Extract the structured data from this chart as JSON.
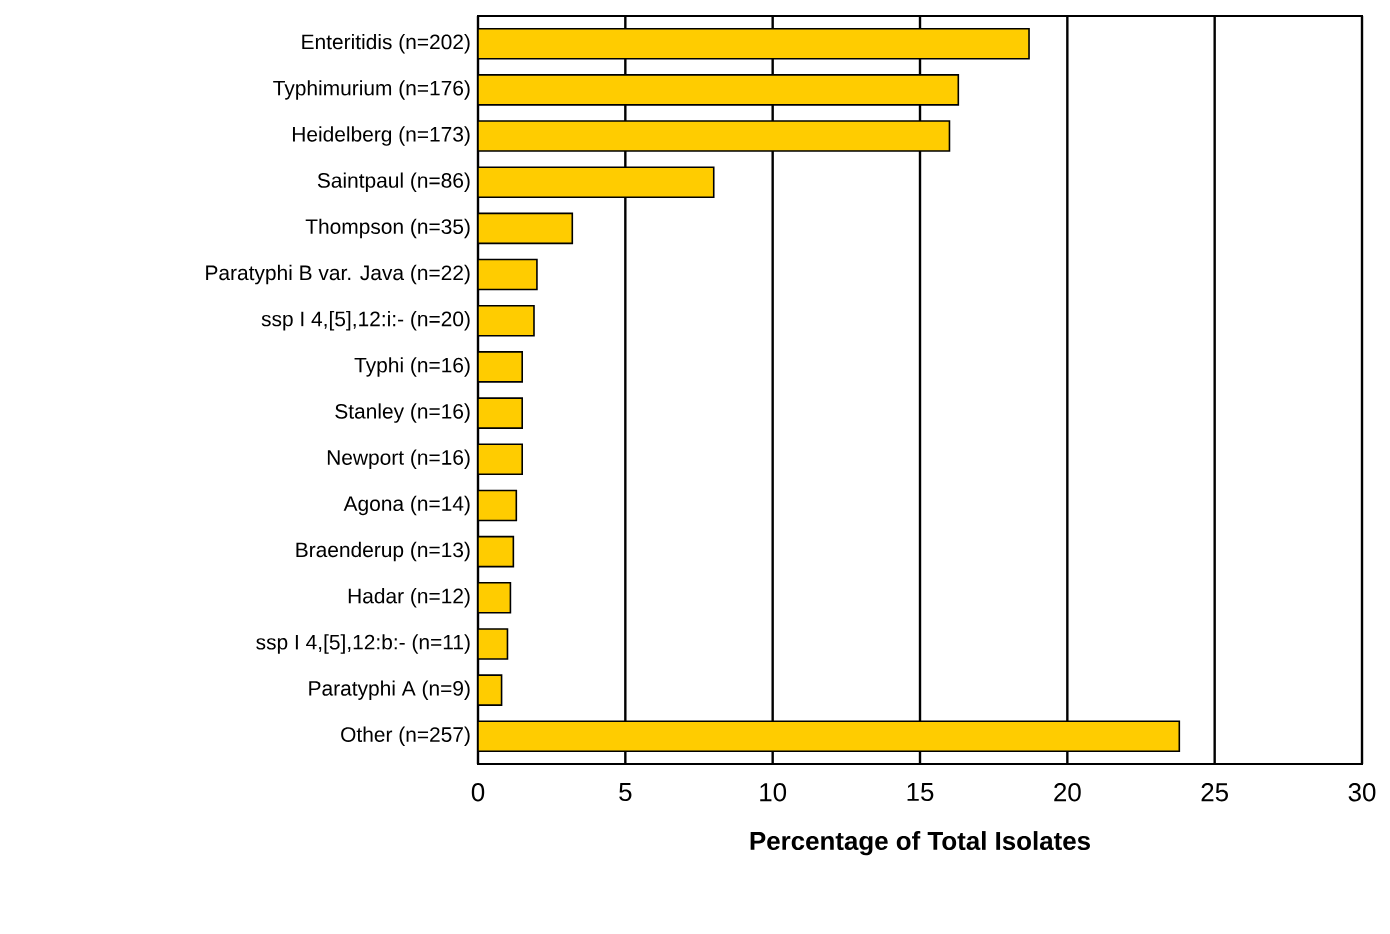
{
  "chart_data": {
    "type": "bar",
    "orientation": "horizontal",
    "xlabel": "Percentage of Total Isolates",
    "categories": [
      "Enteritidis (n=202)",
      "Typhimurium (n=176)",
      "Heidelberg (n=173)",
      "Saintpaul (n=86)",
      "Thompson (n=35)",
      "Paratyphi B var. Java (n=22)",
      "ssp I 4,[5],12:i:- (n=20)",
      "Typhi (n=16)",
      "Stanley (n=16)",
      "Newport (n=16)",
      "Agona (n=14)",
      "Braenderup (n=13)",
      "Hadar (n=12)",
      "ssp I 4,[5],12:b:- (n=11)",
      "Paratyphi A (n=9)",
      "Other (n=257)"
    ],
    "values": [
      18.7,
      16.3,
      16.0,
      8.0,
      3.2,
      2.0,
      1.9,
      1.5,
      1.5,
      1.5,
      1.3,
      1.2,
      1.1,
      1.0,
      0.8,
      23.8
    ],
    "color": "#ffcc00",
    "xlim": [
      0,
      30
    ],
    "xticks": [
      0,
      5,
      10,
      15,
      20,
      25,
      30
    ],
    "grid": "x"
  }
}
